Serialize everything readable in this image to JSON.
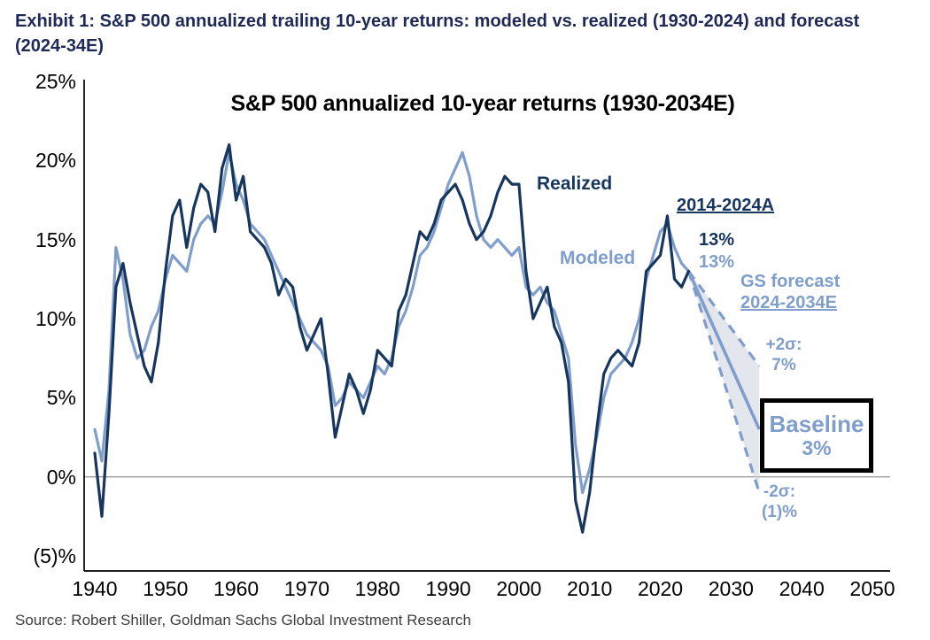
{
  "header": {
    "title_line1": "Exhibit 1: S&P 500 annualized trailing 10-year returns: modeled vs. realized (1930-2024) and forecast",
    "title_line2": "(2024-34E)"
  },
  "footer": {
    "source": "Source: Robert Shiller, Goldman Sachs Global Investment Research"
  },
  "chart_data": {
    "type": "line",
    "title": "S&P 500 annualized 10-year returns (1930-2034E)",
    "xlabel": "",
    "ylabel": "",
    "xlim": [
      1940,
      2050
    ],
    "ylim": [
      -5,
      25
    ],
    "grid": false,
    "x_ticks": [
      "1940",
      "1950",
      "1960",
      "1970",
      "1980",
      "1990",
      "2000",
      "2010",
      "2020",
      "2030",
      "2040",
      "2050"
    ],
    "x_tick_years": [
      1940,
      1950,
      1960,
      1970,
      1980,
      1990,
      2000,
      2010,
      2020,
      2030,
      2040,
      2050
    ],
    "y_ticks": [
      {
        "value": 25,
        "label": "25%"
      },
      {
        "value": 20,
        "label": "20%"
      },
      {
        "value": 15,
        "label": "15%"
      },
      {
        "value": 10,
        "label": "10%"
      },
      {
        "value": 5,
        "label": "5%"
      },
      {
        "value": 0,
        "label": "0%"
      },
      {
        "value": -5,
        "label": "(5)%"
      }
    ],
    "colors": {
      "realized": "#17365d",
      "modeled": "#7f9ecb",
      "forecast": "#7f9ecb",
      "fan_fill": "#ccd2de",
      "zero_line": "#9b9b9b",
      "axis": "#000000"
    },
    "series": [
      {
        "name": "Realized",
        "color": "#17365d",
        "x_start": 1940,
        "values": [
          1.5,
          -2.5,
          4.0,
          12.0,
          13.5,
          11.0,
          9.0,
          7.0,
          6.0,
          8.5,
          13.0,
          16.5,
          17.5,
          14.5,
          17.0,
          18.5,
          18.0,
          15.5,
          19.5,
          21.0,
          17.5,
          19.0,
          15.5,
          15.0,
          14.5,
          13.5,
          11.5,
          12.5,
          12.0,
          9.5,
          8.0,
          9.0,
          10.0,
          6.5,
          2.5,
          4.5,
          6.5,
          5.5,
          4.0,
          5.5,
          8.0,
          7.5,
          7.0,
          10.5,
          11.5,
          13.5,
          15.5,
          15.0,
          16.0,
          17.5,
          18.0,
          18.5,
          17.5,
          16.0,
          15.0,
          15.5,
          16.5,
          18.0,
          19.0,
          18.5,
          18.5,
          13.0,
          10.0,
          11.0,
          12.0,
          9.5,
          8.5,
          6.0,
          -1.5,
          -3.5,
          -1.0,
          3.0,
          6.5,
          7.5,
          8.0,
          7.5,
          7.0,
          8.5,
          13.0,
          13.5,
          14.0,
          16.5,
          12.5,
          12.0,
          13.0
        ]
      },
      {
        "name": "Modeled",
        "color": "#7f9ecb",
        "x_start": 1940,
        "values": [
          3.0,
          1.0,
          5.5,
          14.5,
          12.5,
          9.0,
          7.5,
          8.0,
          9.5,
          10.5,
          12.5,
          14.0,
          13.5,
          13.0,
          15.0,
          16.0,
          16.5,
          16.0,
          18.0,
          20.5,
          18.5,
          17.5,
          16.0,
          15.5,
          15.0,
          14.0,
          13.0,
          12.0,
          11.0,
          10.0,
          9.0,
          8.5,
          8.0,
          7.0,
          4.5,
          5.0,
          6.0,
          5.5,
          5.0,
          6.0,
          7.0,
          6.5,
          7.5,
          9.5,
          10.5,
          12.0,
          14.0,
          14.5,
          15.5,
          17.0,
          18.5,
          19.5,
          20.5,
          19.0,
          16.5,
          15.0,
          14.5,
          15.0,
          14.5,
          14.0,
          14.5,
          12.0,
          11.5,
          12.0,
          11.0,
          10.5,
          9.0,
          7.5,
          2.0,
          -1.0,
          0.5,
          2.5,
          5.0,
          6.5,
          7.0,
          7.5,
          8.5,
          10.0,
          12.5,
          14.0,
          15.5,
          16.0,
          14.5,
          13.5,
          13.0
        ]
      }
    ],
    "forecast": {
      "start_year": 2024,
      "end_year": 2034,
      "start_value": 13,
      "baseline_end": 3,
      "upper_end": 7,
      "lower_end": -1
    },
    "annotations": {
      "realized_label": "Realized",
      "modeled_label": "Modeled",
      "period_label": "2014-2024A",
      "realized_value": "13%",
      "modeled_value": "13%",
      "gs_forecast_line1": "GS forecast",
      "gs_forecast_line2": "2024-2034E",
      "upper_sigma_label": "+2σ:",
      "upper_sigma_value": "7%",
      "baseline_label": "Baseline",
      "baseline_value": "3%",
      "lower_sigma_label": "-2σ:",
      "lower_sigma_value": "(1)%"
    }
  }
}
